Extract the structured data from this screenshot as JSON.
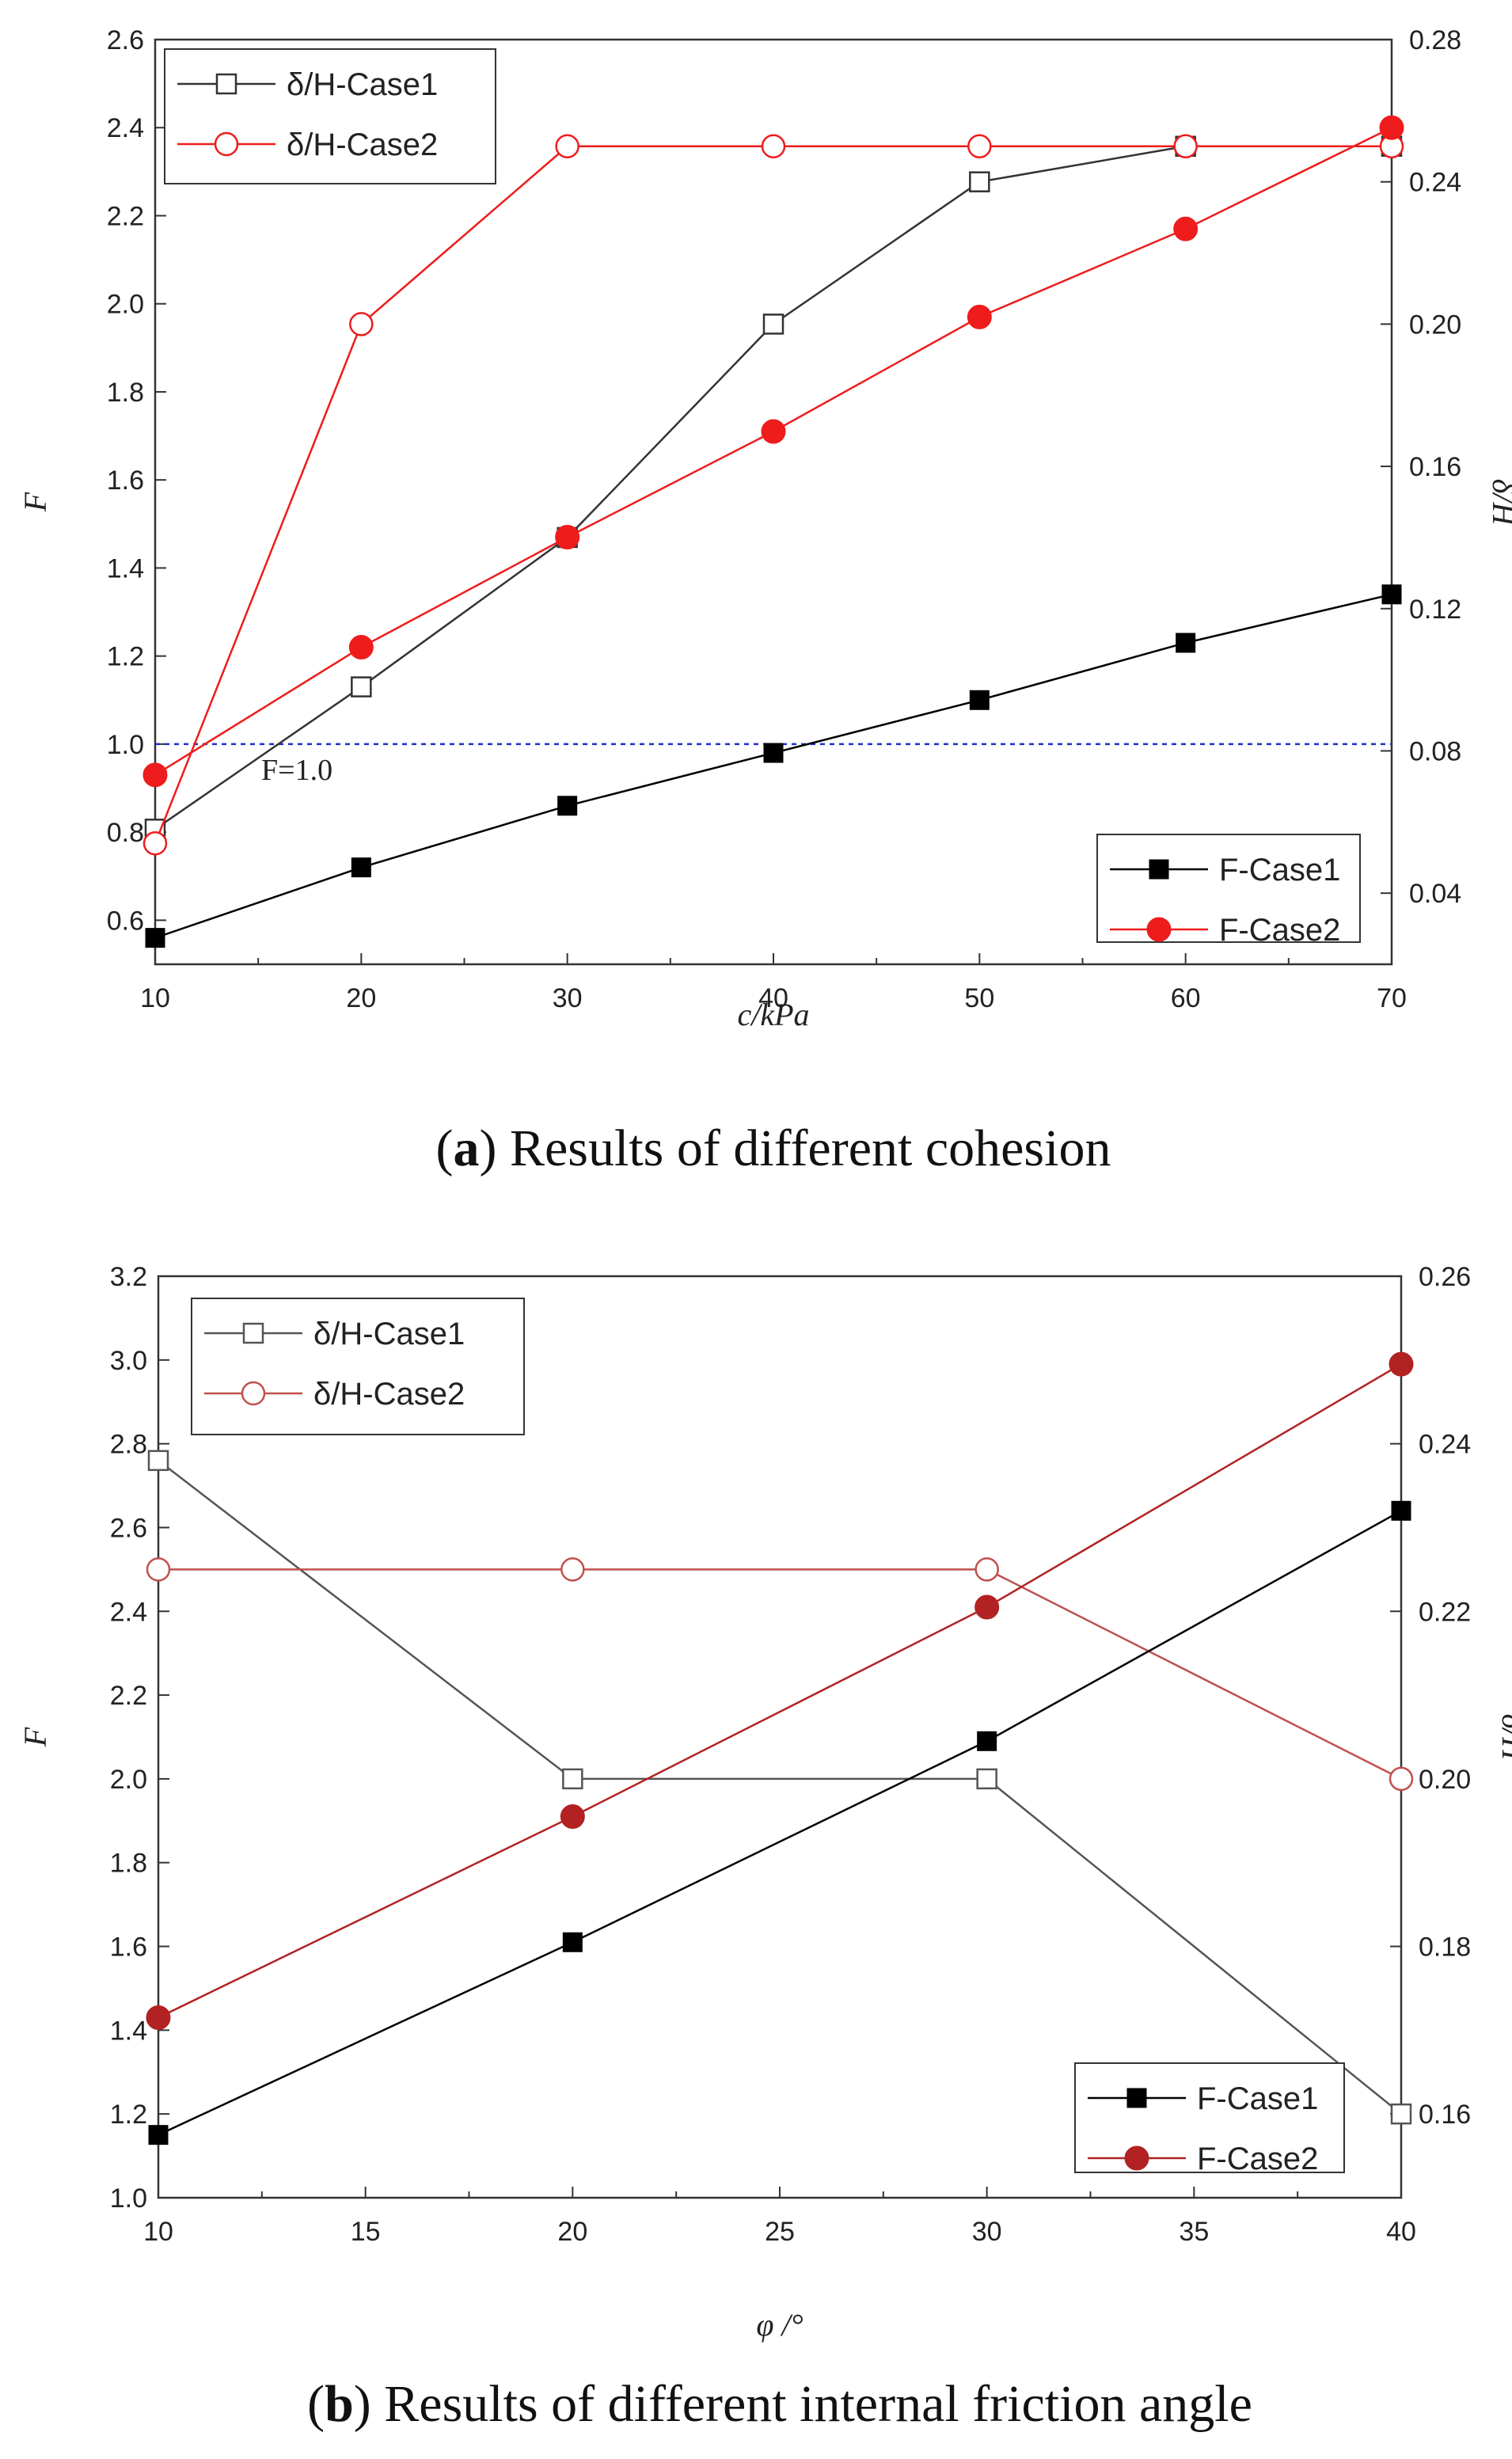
{
  "chart_data": [
    {
      "type": "line",
      "caption_letter": "a",
      "caption_text": ") Results of different cohesion",
      "xlabel": "c/kPa",
      "ylabel_left": "F",
      "ylabel_right": "δ/H",
      "x": [
        10,
        20,
        30,
        40,
        50,
        60,
        70
      ],
      "xlim": [
        10,
        70
      ],
      "xticks": [
        10,
        20,
        30,
        40,
        50,
        60,
        70
      ],
      "ylim_left": [
        0.5,
        2.6
      ],
      "yticks_left": [
        0.6,
        0.8,
        1.0,
        1.2,
        1.4,
        1.6,
        1.8,
        2.0,
        2.2,
        2.4,
        2.6
      ],
      "ylim_right": [
        0.02,
        0.28
      ],
      "yticks_right": [
        0.04,
        0.08,
        0.12,
        0.16,
        0.2,
        0.24,
        0.28
      ],
      "reference_line": {
        "axis": "left",
        "value": 1.0,
        "label": "F=1.0",
        "color": "#1f2fd0"
      },
      "series": [
        {
          "name": "δ/H-Case1",
          "axis": "right",
          "marker": "square-open",
          "color": "#333333",
          "values": [
            0.058,
            0.098,
            0.14,
            0.2,
            0.24,
            0.25,
            0.25
          ]
        },
        {
          "name": "δ/H-Case2",
          "axis": "right",
          "marker": "circle-open",
          "color": "#ee1c1c",
          "values": [
            0.054,
            0.2,
            0.25,
            0.25,
            0.25,
            0.25,
            0.25
          ]
        },
        {
          "name": "F-Case1",
          "axis": "left",
          "marker": "square-filled",
          "color": "#000000",
          "values": [
            0.56,
            0.72,
            0.86,
            0.98,
            1.1,
            1.23,
            1.34
          ]
        },
        {
          "name": "F-Case2",
          "axis": "left",
          "marker": "circle-filled",
          "color": "#ee1c1c",
          "values": [
            0.93,
            1.22,
            1.47,
            1.71,
            1.97,
            2.17,
            2.4
          ]
        }
      ],
      "legend_top": [
        "δ/H-Case1",
        "δ/H-Case2"
      ],
      "legend_bottom": [
        "F-Case1",
        "F-Case2"
      ]
    },
    {
      "type": "line",
      "caption_letter": "b",
      "caption_text": ") Results of different internal friction angle",
      "xlabel": "φ /°",
      "ylabel_left": "F",
      "ylabel_right": "δ/H",
      "x": [
        10,
        20,
        30,
        40
      ],
      "xlim": [
        10,
        40
      ],
      "xticks": [
        10,
        15,
        20,
        25,
        30,
        35,
        40
      ],
      "ylim_left": [
        1.0,
        3.2
      ],
      "yticks_left": [
        1.0,
        1.2,
        1.4,
        1.6,
        1.8,
        2.0,
        2.2,
        2.4,
        2.6,
        2.8,
        3.0,
        3.2
      ],
      "ylim_right": [
        0.15,
        0.26
      ],
      "yticks_right": [
        0.16,
        0.18,
        0.2,
        0.22,
        0.24,
        0.26
      ],
      "series": [
        {
          "name": "δ/H-Case1",
          "axis": "right",
          "marker": "square-open",
          "color": "#555555",
          "values": [
            0.238,
            0.2,
            0.2,
            0.16
          ]
        },
        {
          "name": "δ/H-Case2",
          "axis": "right",
          "marker": "circle-open",
          "color": "#c0504d",
          "values": [
            0.225,
            0.225,
            0.225,
            0.2
          ]
        },
        {
          "name": "F-Case1",
          "axis": "left",
          "marker": "square-filled",
          "color": "#000000",
          "values": [
            1.15,
            1.61,
            2.09,
            2.64
          ]
        },
        {
          "name": "F-Case2",
          "axis": "left",
          "marker": "circle-filled",
          "color": "#b22222",
          "values": [
            1.43,
            1.91,
            2.41,
            2.99
          ]
        }
      ],
      "legend_top": [
        "δ/H-Case1",
        "δ/H-Case2"
      ],
      "legend_bottom": [
        "F-Case1",
        "F-Case2"
      ]
    }
  ]
}
